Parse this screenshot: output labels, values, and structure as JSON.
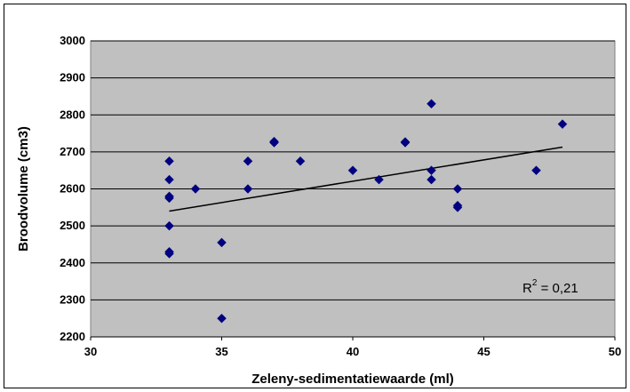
{
  "chart_data": {
    "type": "scatter",
    "title": "",
    "xlabel": "Zeleny-sedimentatiewaarde (ml)",
    "ylabel": "Broodvolume (cm3)",
    "xlim": [
      30,
      50
    ],
    "ylim": [
      2200,
      3000
    ],
    "xticks": [
      "30",
      "35",
      "40",
      "45",
      "50"
    ],
    "yticks": [
      "2200",
      "2300",
      "2400",
      "2500",
      "2600",
      "2700",
      "2800",
      "2900",
      "3000"
    ],
    "grid": "horizontal",
    "series": [
      {
        "points": [
          [
            33,
            2675
          ],
          [
            33,
            2625
          ],
          [
            33,
            2575
          ],
          [
            33,
            2580
          ],
          [
            33,
            2500
          ],
          [
            33,
            2425
          ],
          [
            33,
            2430
          ],
          [
            34,
            2600
          ],
          [
            35,
            2455
          ],
          [
            35,
            2250
          ],
          [
            36,
            2675
          ],
          [
            36,
            2600
          ],
          [
            37,
            2725
          ],
          [
            37,
            2728
          ],
          [
            38,
            2675
          ],
          [
            40,
            2650
          ],
          [
            41,
            2625
          ],
          [
            42,
            2725
          ],
          [
            42,
            2727
          ],
          [
            43,
            2830
          ],
          [
            43,
            2650
          ],
          [
            43,
            2625
          ],
          [
            44,
            2600
          ],
          [
            44,
            2550
          ],
          [
            44,
            2555
          ],
          [
            47,
            2650
          ],
          [
            48,
            2775
          ]
        ]
      }
    ],
    "trendline": {
      "type": "linear",
      "x": [
        33,
        48
      ],
      "y": [
        2540,
        2713
      ]
    },
    "r2_prefix": "R",
    "r2_sup": "2",
    "r2_value": " = 0,21",
    "colors": {
      "plot_background": "#c0c0c0",
      "marker": "#000080",
      "gridline": "#000000",
      "trendline": "#000000"
    }
  }
}
